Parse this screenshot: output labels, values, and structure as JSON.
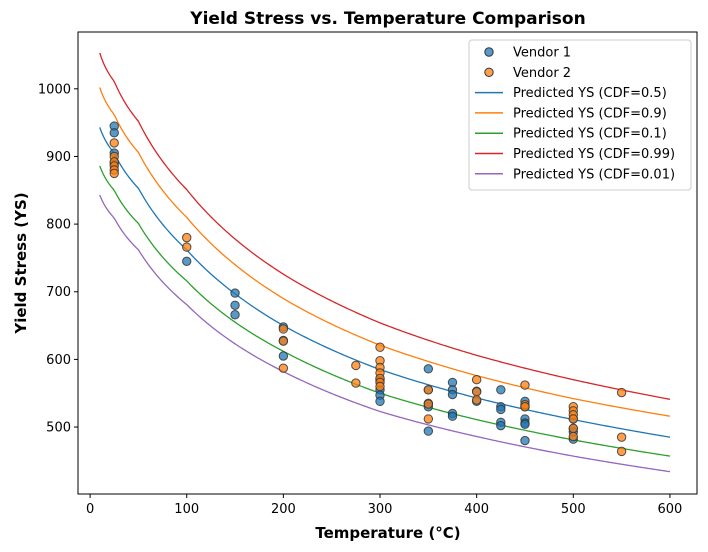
{
  "chart_data": {
    "type": "scatter",
    "title": "Yield Stress vs. Temperature Comparison",
    "xlabel": "Temperature (°C)",
    "ylabel": "Yield Stress (YS)",
    "xlim": [
      -12.5,
      628
    ],
    "ylim": [
      401,
      1084
    ],
    "xticks": [
      0,
      100,
      200,
      300,
      400,
      500,
      600
    ],
    "yticks": [
      500,
      600,
      700,
      800,
      900,
      1000
    ],
    "grid": false,
    "legend_position": "top-right",
    "scatter_series": [
      {
        "name": "Vendor 1",
        "color": "#1f77b4",
        "points": [
          [
            25,
            945
          ],
          [
            25,
            935
          ],
          [
            25,
            905
          ],
          [
            25,
            890
          ],
          [
            100,
            745
          ],
          [
            150,
            698
          ],
          [
            150,
            680
          ],
          [
            150,
            666
          ],
          [
            200,
            648
          ],
          [
            200,
            628
          ],
          [
            200,
            605
          ],
          [
            300,
            570
          ],
          [
            300,
            555
          ],
          [
            300,
            547
          ],
          [
            300,
            538
          ],
          [
            350,
            586
          ],
          [
            350,
            555
          ],
          [
            350,
            535
          ],
          [
            350,
            530
          ],
          [
            350,
            494
          ],
          [
            375,
            566
          ],
          [
            375,
            555
          ],
          [
            375,
            548
          ],
          [
            375,
            520
          ],
          [
            375,
            516
          ],
          [
            400,
            553
          ],
          [
            400,
            538
          ],
          [
            425,
            555
          ],
          [
            425,
            530
          ],
          [
            425,
            526
          ],
          [
            425,
            507
          ],
          [
            425,
            502
          ],
          [
            450,
            538
          ],
          [
            450,
            530
          ],
          [
            450,
            512
          ],
          [
            450,
            506
          ],
          [
            450,
            504
          ],
          [
            450,
            480
          ],
          [
            500,
            512
          ],
          [
            500,
            498
          ],
          [
            500,
            493
          ],
          [
            500,
            482
          ]
        ]
      },
      {
        "name": "Vendor 2",
        "color": "#ff7f0e",
        "points": [
          [
            25,
            920
          ],
          [
            25,
            900
          ],
          [
            25,
            892
          ],
          [
            25,
            886
          ],
          [
            25,
            880
          ],
          [
            25,
            875
          ],
          [
            100,
            780
          ],
          [
            100,
            766
          ],
          [
            200,
            645
          ],
          [
            200,
            627
          ],
          [
            200,
            587
          ],
          [
            275,
            591
          ],
          [
            275,
            565
          ],
          [
            300,
            618
          ],
          [
            300,
            598
          ],
          [
            300,
            588
          ],
          [
            300,
            580
          ],
          [
            300,
            572
          ],
          [
            300,
            566
          ],
          [
            300,
            560
          ],
          [
            350,
            555
          ],
          [
            350,
            534
          ],
          [
            350,
            512
          ],
          [
            400,
            570
          ],
          [
            400,
            552
          ],
          [
            400,
            540
          ],
          [
            450,
            562
          ],
          [
            450,
            533
          ],
          [
            450,
            530
          ],
          [
            500,
            530
          ],
          [
            500,
            524
          ],
          [
            500,
            518
          ],
          [
            500,
            512
          ],
          [
            500,
            498
          ],
          [
            500,
            486
          ],
          [
            550,
            551
          ],
          [
            550,
            485
          ],
          [
            550,
            464
          ]
        ]
      }
    ],
    "line_series": [
      {
        "name": "Predicted YS (CDF=0.5)",
        "color": "#1f77b4",
        "x": [
          10,
          25,
          50,
          100,
          150,
          200,
          300,
          400,
          500,
          600
        ],
        "y": [
          943,
          905,
          853,
          762,
          697,
          650,
          585,
          543,
          511,
          485
        ]
      },
      {
        "name": "Predicted YS (CDF=0.9)",
        "color": "#ff7f0e",
        "x": [
          10,
          25,
          50,
          100,
          150,
          200,
          300,
          400,
          500,
          600
        ],
        "y": [
          1002,
          962,
          906,
          810,
          740,
          690,
          621,
          576,
          542,
          516
        ]
      },
      {
        "name": "Predicted YS (CDF=0.1)",
        "color": "#2ca02c",
        "x": [
          10,
          25,
          50,
          100,
          150,
          200,
          300,
          400,
          500,
          600
        ],
        "y": [
          886,
          850,
          801,
          716,
          655,
          612,
          550,
          511,
          481,
          457
        ]
      },
      {
        "name": "Predicted YS (CDF=0.99)",
        "color": "#d62728",
        "x": [
          10,
          25,
          50,
          100,
          150,
          200,
          300,
          400,
          500,
          600
        ],
        "y": [
          1053,
          1011,
          952,
          851,
          778,
          726,
          654,
          606,
          570,
          541
        ]
      },
      {
        "name": "Predicted YS (CDF=0.01)",
        "color": "#9467bd",
        "x": [
          10,
          25,
          50,
          100,
          150,
          200,
          300,
          400,
          500,
          600
        ],
        "y": [
          843,
          809,
          762,
          681,
          623,
          582,
          523,
          486,
          457,
          434
        ]
      }
    ],
    "legend": [
      {
        "label": "Vendor 1",
        "kind": "marker",
        "color": "#1f77b4"
      },
      {
        "label": "Vendor 2",
        "kind": "marker",
        "color": "#ff7f0e"
      },
      {
        "label": "Predicted YS (CDF=0.5)",
        "kind": "line",
        "color": "#1f77b4"
      },
      {
        "label": "Predicted YS (CDF=0.9)",
        "kind": "line",
        "color": "#ff7f0e"
      },
      {
        "label": "Predicted YS (CDF=0.1)",
        "kind": "line",
        "color": "#2ca02c"
      },
      {
        "label": "Predicted YS (CDF=0.99)",
        "kind": "line",
        "color": "#d62728"
      },
      {
        "label": "Predicted YS (CDF=0.01)",
        "kind": "line",
        "color": "#9467bd"
      }
    ]
  }
}
